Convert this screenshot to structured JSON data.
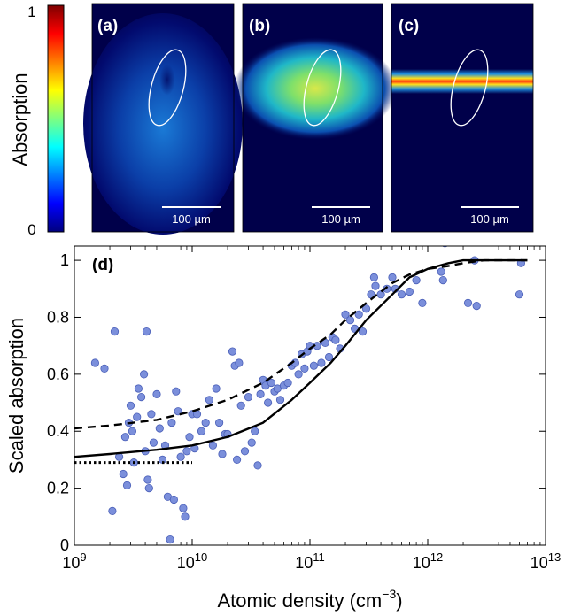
{
  "colorbar": {
    "label": "Absorption",
    "max_label": "1",
    "min_label": "0",
    "colormap": "jet",
    "stops": [
      "#00007f",
      "#0000ff",
      "#007fff",
      "#00ffff",
      "#7fff7f",
      "#ffff00",
      "#ff7f00",
      "#ff0000",
      "#7f0000"
    ]
  },
  "panels": [
    {
      "label": "(a)",
      "scalebar": "100 µm",
      "image": "dim diffuse blue cloud with darker hole inside ellipse"
    },
    {
      "label": "(b)",
      "scalebar": "100 µm",
      "image": "bright green-yellow elliptical cloud"
    },
    {
      "label": "(c)",
      "scalebar": "100 µm",
      "image": "thin bright red-yellow horizontal stripe"
    }
  ],
  "chart_data": {
    "type": "scatter",
    "panel_label": "(d)",
    "xlabel": "Atomic density (cm",
    "xlabel_sup": "−3",
    "xlabel_end": ")",
    "ylabel": "Scaled absorption",
    "xscale": "log",
    "xlim": [
      1000000000.0,
      10000000000000.0
    ],
    "ylim": [
      0,
      1.05
    ],
    "x_ticks": [
      1000000000.0,
      10000000000.0,
      100000000000.0,
      1000000000000.0,
      10000000000000.0
    ],
    "x_tick_labels": [
      {
        "base": "10",
        "exp": "9"
      },
      {
        "base": "10",
        "exp": "10"
      },
      {
        "base": "10",
        "exp": "11"
      },
      {
        "base": "10",
        "exp": "12"
      },
      {
        "base": "10",
        "exp": "13"
      }
    ],
    "y_ticks": [
      0,
      0.2,
      0.4,
      0.6,
      0.8,
      1
    ],
    "y_tick_labels": [
      "0",
      "0.2",
      "0.4",
      "0.6",
      "0.8",
      "1"
    ],
    "marker_color": "#7b8fdb",
    "marker_edge": "#4a5fb8",
    "points": [
      [
        1500000000.0,
        0.64
      ],
      [
        1800000000.0,
        0.62
      ],
      [
        2100000000.0,
        0.12
      ],
      [
        2200000000.0,
        0.75
      ],
      [
        2400000000.0,
        0.31
      ],
      [
        2600000000.0,
        0.25
      ],
      [
        2700000000.0,
        0.38
      ],
      [
        2800000000.0,
        0.21
      ],
      [
        2900000000.0,
        0.43
      ],
      [
        3000000000.0,
        0.49
      ],
      [
        3100000000.0,
        0.4
      ],
      [
        3200000000.0,
        0.29
      ],
      [
        3400000000.0,
        0.45
      ],
      [
        3500000000.0,
        0.55
      ],
      [
        3700000000.0,
        0.52
      ],
      [
        3900000000.0,
        0.6
      ],
      [
        4000000000.0,
        0.33
      ],
      [
        4100000000.0,
        0.75
      ],
      [
        4200000000.0,
        0.23
      ],
      [
        4300000000.0,
        0.2
      ],
      [
        4500000000.0,
        0.46
      ],
      [
        4700000000.0,
        0.36
      ],
      [
        5000000000.0,
        0.53
      ],
      [
        5300000000.0,
        0.41
      ],
      [
        5600000000.0,
        0.3
      ],
      [
        5900000000.0,
        0.35
      ],
      [
        6200000000.0,
        0.17
      ],
      [
        6500000000.0,
        0.02
      ],
      [
        6700000000.0,
        0.43
      ],
      [
        7000000000.0,
        0.16
      ],
      [
        7300000000.0,
        0.54
      ],
      [
        7600000000.0,
        0.47
      ],
      [
        8000000000.0,
        0.31
      ],
      [
        8400000000.0,
        0.13
      ],
      [
        8700000000.0,
        0.1
      ],
      [
        9000000000.0,
        0.33
      ],
      [
        9500000000.0,
        0.38
      ],
      [
        10000000000.0,
        0.46
      ],
      [
        10500000000.0,
        0.34
      ],
      [
        11000000000.0,
        0.46
      ],
      [
        12000000000.0,
        0.4
      ],
      [
        13000000000.0,
        0.43
      ],
      [
        14000000000.0,
        0.51
      ],
      [
        15000000000.0,
        0.35
      ],
      [
        16000000000.0,
        0.55
      ],
      [
        17000000000.0,
        0.43
      ],
      [
        18000000000.0,
        0.32
      ],
      [
        19000000000.0,
        0.39
      ],
      [
        20000000000.0,
        0.39
      ],
      [
        22000000000.0,
        0.68
      ],
      [
        23000000000.0,
        0.63
      ],
      [
        24000000000.0,
        0.3
      ],
      [
        25000000000.0,
        0.64
      ],
      [
        26000000000.0,
        0.49
      ],
      [
        28000000000.0,
        0.33
      ],
      [
        30000000000.0,
        0.52
      ],
      [
        32000000000.0,
        0.36
      ],
      [
        34000000000.0,
        0.4
      ],
      [
        36000000000.0,
        0.28
      ],
      [
        38000000000.0,
        0.53
      ],
      [
        40000000000.0,
        0.58
      ],
      [
        42000000000.0,
        0.56
      ],
      [
        44000000000.0,
        0.5
      ],
      [
        47000000000.0,
        0.57
      ],
      [
        50000000000.0,
        0.54
      ],
      [
        53000000000.0,
        0.55
      ],
      [
        56000000000.0,
        0.51
      ],
      [
        60000000000.0,
        0.56
      ],
      [
        65000000000.0,
        0.57
      ],
      [
        70000000000.0,
        0.63
      ],
      [
        75000000000.0,
        0.64
      ],
      [
        80000000000.0,
        0.6
      ],
      [
        85000000000.0,
        0.67
      ],
      [
        90000000000.0,
        0.62
      ],
      [
        95000000000.0,
        0.68
      ],
      [
        100000000000.0,
        0.7
      ],
      [
        108000000000.0,
        0.63
      ],
      [
        115000000000.0,
        0.7
      ],
      [
        125000000000.0,
        0.64
      ],
      [
        135000000000.0,
        0.71
      ],
      [
        145000000000.0,
        0.66
      ],
      [
        155000000000.0,
        0.73
      ],
      [
        165000000000.0,
        0.72
      ],
      [
        180000000000.0,
        0.69
      ],
      [
        200000000000.0,
        0.81
      ],
      [
        220000000000.0,
        0.79
      ],
      [
        240000000000.0,
        0.76
      ],
      [
        260000000000.0,
        0.81
      ],
      [
        280000000000.0,
        0.75
      ],
      [
        300000000000.0,
        0.83
      ],
      [
        330000000000.0,
        0.88
      ],
      [
        350000000000.0,
        0.94
      ],
      [
        360000000000.0,
        0.91
      ],
      [
        400000000000.0,
        0.88
      ],
      [
        450000000000.0,
        0.9
      ],
      [
        500000000000.0,
        0.94
      ],
      [
        530000000000.0,
        0.9
      ],
      [
        600000000000.0,
        0.88
      ],
      [
        700000000000.0,
        0.89
      ],
      [
        800000000000.0,
        0.93
      ],
      [
        900000000000.0,
        0.85
      ],
      [
        1300000000000.0,
        0.96
      ],
      [
        1350000000000.0,
        0.93
      ],
      [
        1400000000000.0,
        1.06
      ],
      [
        2200000000000.0,
        0.85
      ],
      [
        2500000000000.0,
        1.0
      ],
      [
        2600000000000.0,
        0.84
      ],
      [
        6000000000000.0,
        0.88
      ],
      [
        6200000000000.0,
        0.99
      ]
    ],
    "series": [
      {
        "style": "solid",
        "color": "#000000",
        "x": [
          1000000000.0,
          2000000000.0,
          5000000000.0,
          10000000000.0,
          20000000000.0,
          40000000000.0,
          70000000000.0,
          100000000000.0,
          150000000000.0,
          200000000000.0,
          300000000000.0,
          500000000000.0,
          700000000000.0,
          1000000000000.0,
          1500000000000.0,
          2000000000000.0,
          3000000000000.0,
          7000000000000.0
        ],
        "y": [
          0.31,
          0.32,
          0.335,
          0.35,
          0.38,
          0.43,
          0.51,
          0.57,
          0.64,
          0.7,
          0.79,
          0.88,
          0.94,
          0.97,
          0.99,
          1.0,
          1.0,
          1.0
        ]
      },
      {
        "style": "dashed",
        "color": "#000000",
        "x": [
          1000000000.0,
          2000000000.0,
          5000000000.0,
          10000000000.0,
          20000000000.0,
          40000000000.0,
          70000000000.0,
          100000000000.0,
          150000000000.0,
          200000000000.0,
          300000000000.0,
          500000000000.0,
          700000000000.0,
          1000000000000.0,
          1500000000000.0,
          2000000000000.0,
          3000000000000.0,
          7000000000000.0
        ],
        "y": [
          0.41,
          0.42,
          0.44,
          0.47,
          0.51,
          0.57,
          0.64,
          0.69,
          0.74,
          0.79,
          0.85,
          0.92,
          0.95,
          0.97,
          0.98,
          0.99,
          1.0,
          1.0
        ]
      },
      {
        "style": "dotted",
        "color": "#000000",
        "x": [
          1000000000.0,
          10000000000.0
        ],
        "y": [
          0.29,
          0.29
        ]
      }
    ]
  }
}
